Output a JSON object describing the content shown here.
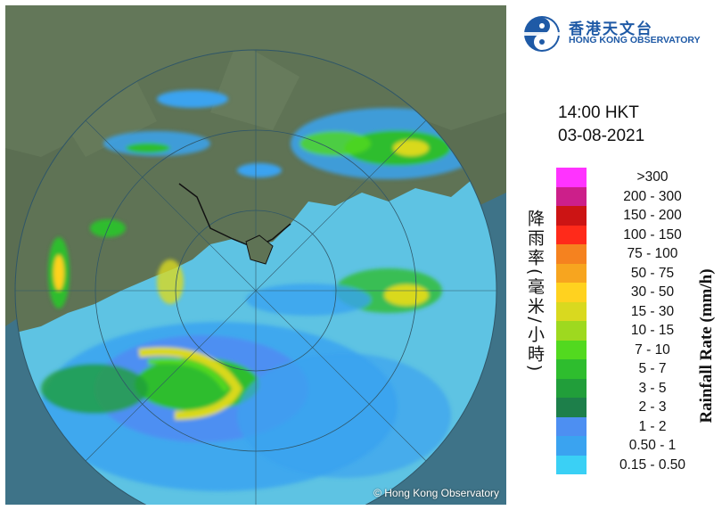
{
  "map": {
    "credit": "© Hong Kong Observatory",
    "colors": {
      "sea_outside": "#3e7388",
      "sea_inside": "#5ec3e3",
      "land": "#5f7355",
      "range_ring": "#2f5668",
      "coast": "#111111"
    }
  },
  "header": {
    "org_name_cn": "香港天文台",
    "org_name_en": "HONG KONG OBSERVATORY",
    "logo_icon": "hko-logo-icon",
    "time": "14:00 HKT",
    "date": "03-08-2021"
  },
  "legend": {
    "title_en": "Rainfall Rate (mm/h)",
    "title_cn": "降雨率(毫米/小時)",
    "items": [
      {
        "label": ">300",
        "color": "#ff33ff"
      },
      {
        "label": "200 - 300",
        "color": "#cc1f8a"
      },
      {
        "label": "150 - 200",
        "color": "#cc1414"
      },
      {
        "label": "100 - 150",
        "color": "#ff2a1a"
      },
      {
        "label": "75 - 100",
        "color": "#f5821f"
      },
      {
        "label": "50 - 75",
        "color": "#f7a51f"
      },
      {
        "label": "30 - 50",
        "color": "#ffd21f"
      },
      {
        "label": "15 - 30",
        "color": "#d9d91f"
      },
      {
        "label": "10 - 15",
        "color": "#9ed91f"
      },
      {
        "label": "7 - 10",
        "color": "#52d91f"
      },
      {
        "label": "5 - 7",
        "color": "#2ebd2e"
      },
      {
        "label": "3 - 5",
        "color": "#219e3a"
      },
      {
        "label": "2 - 3",
        "color": "#1d7f4a"
      },
      {
        "label": "1 - 2",
        "color": "#4d8ff2"
      },
      {
        "label": "0.50 - 1",
        "color": "#3aa3f0"
      },
      {
        "label": "0.15 - 0.50",
        "color": "#3ad0f5"
      }
    ]
  }
}
